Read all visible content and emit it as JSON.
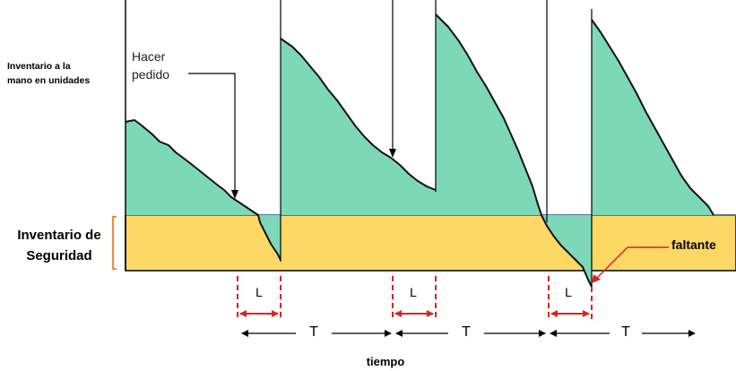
{
  "y_axis_label_lines": [
    "Inventario a  la",
    "mano en unidades"
  ],
  "order_label_lines": [
    "Hacer",
    "pedido"
  ],
  "safety_stock_label_lines": [
    "Inventario de",
    "Seguridad"
  ],
  "shortage_label": "faltante",
  "lead_time_label": "L",
  "cycle_label": "T",
  "x_axis_label": "tiempo",
  "colors": {
    "stock_fill": "#7dd8b8",
    "safety_fill": "#fdd865",
    "bracket": "#f08a3c",
    "marker": "#e02020",
    "reorder_line": "#4a6fb8"
  }
}
